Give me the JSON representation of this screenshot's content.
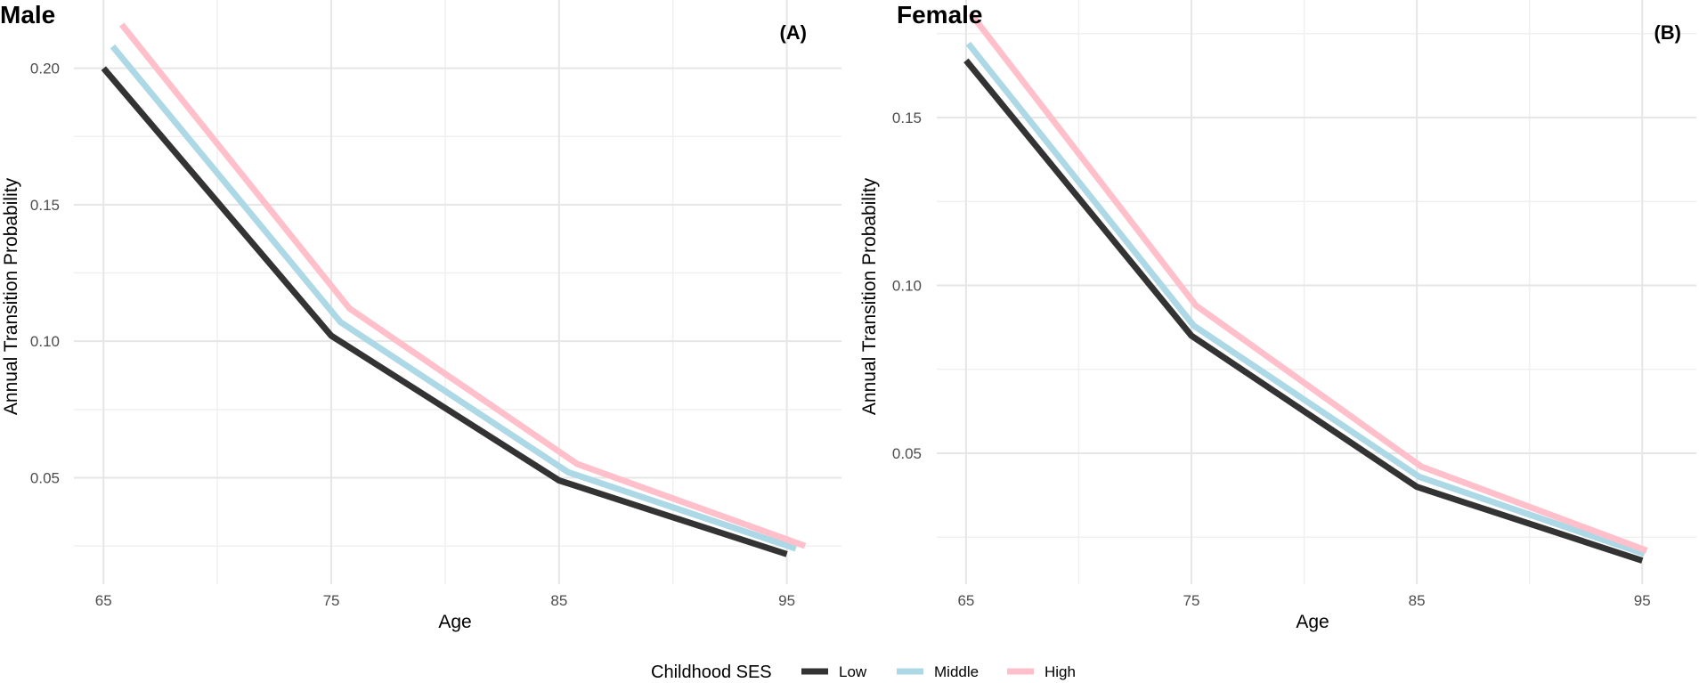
{
  "chart_data": [
    {
      "type": "line",
      "panel": "left",
      "title": "Male",
      "tag": "(A)",
      "xlabel": "Age",
      "ylabel": "Annual Transition Probability",
      "x_ticks": [
        65,
        75,
        85,
        95
      ],
      "x_tick_labels": [
        "65",
        "75",
        "85",
        "95"
      ],
      "y_ticks": [
        0.05,
        0.1,
        0.15,
        0.2
      ],
      "y_tick_labels": [
        "0.05",
        "0.10",
        "0.15",
        "0.20"
      ],
      "xlim": [
        63.7,
        97.4
      ],
      "ylim": [
        0.011,
        0.225
      ],
      "series": [
        {
          "name": "Low",
          "color": "#333333",
          "x": [
            65,
            75,
            85,
            95
          ],
          "values": [
            0.2,
            0.102,
            0.049,
            0.022
          ]
        },
        {
          "name": "Middle",
          "color": "#add8e6",
          "x": [
            65.4,
            75.4,
            85.4,
            95.4
          ],
          "values": [
            0.208,
            0.107,
            0.052,
            0.024
          ]
        },
        {
          "name": "High",
          "color": "#ffc0cb",
          "x": [
            65.8,
            75.8,
            85.8,
            95.8
          ],
          "values": [
            0.216,
            0.112,
            0.055,
            0.025
          ]
        }
      ]
    },
    {
      "type": "line",
      "panel": "right",
      "title": "Female",
      "tag": "(B)",
      "xlabel": "Age",
      "ylabel": "Annual Transition Probability",
      "x_ticks": [
        65,
        75,
        85,
        95
      ],
      "x_tick_labels": [
        "65",
        "75",
        "85",
        "95"
      ],
      "y_ticks": [
        0.05,
        0.1,
        0.15
      ],
      "y_tick_labels": [
        "0.05",
        "0.10",
        "0.15"
      ],
      "xlim": [
        63.7,
        97.4
      ],
      "ylim": [
        0.011,
        0.185
      ],
      "series": [
        {
          "name": "Low",
          "color": "#333333",
          "x": [
            65,
            75,
            85,
            95
          ],
          "values": [
            0.167,
            0.085,
            0.04,
            0.018
          ]
        },
        {
          "name": "Middle",
          "color": "#add8e6",
          "x": [
            65.1,
            75.1,
            85.1,
            95.1
          ],
          "values": [
            0.172,
            0.088,
            0.043,
            0.02
          ]
        },
        {
          "name": "High",
          "color": "#ffc0cb",
          "x": [
            65.2,
            75.2,
            85.2,
            95.2
          ],
          "values": [
            0.181,
            0.094,
            0.046,
            0.021
          ]
        }
      ]
    }
  ],
  "legend": {
    "title": "Childhood SES",
    "items": [
      {
        "label": "Low",
        "color": "#333333"
      },
      {
        "label": "Middle",
        "color": "#add8e6"
      },
      {
        "label": "High",
        "color": "#ffc0cb"
      }
    ]
  }
}
